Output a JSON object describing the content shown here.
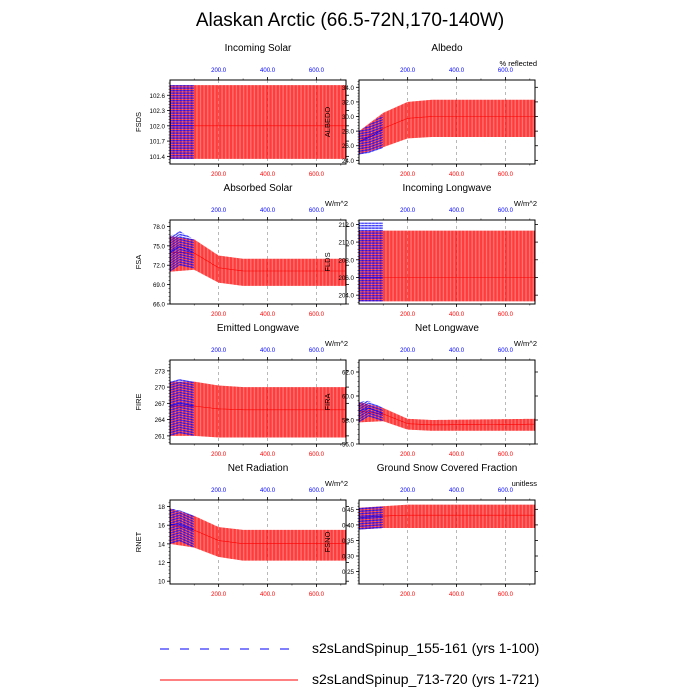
{
  "figure": {
    "title": "Alaskan Arctic (66.5-72N,170-140W)"
  },
  "legend": {
    "items": [
      {
        "label": "s2sLandSpinup_155-161 (yrs 1-100)",
        "color": "#0000ff",
        "style": "dashed"
      },
      {
        "label": "s2sLandSpinup_713-720 (yrs 1-721)",
        "color": "#ff0000",
        "style": "solid"
      }
    ]
  },
  "colors": {
    "series_a": "#0000ff",
    "series_b": "#ff0000"
  },
  "chart_data": [
    {
      "type": "line",
      "title": "Incoming Solar",
      "ylabel": "FSDS",
      "units": "",
      "ylim": [
        101.25,
        102.9
      ],
      "yticks": [
        101.4,
        101.7,
        102.0,
        102.3,
        102.6
      ],
      "ytick_labels": [
        "101.4",
        "101.7",
        "102.0",
        "102.3",
        "102.6"
      ],
      "top_axis": {
        "ticks": [
          200,
          400,
          600
        ],
        "labels": [
          "200.0",
          "400.0",
          "600.0"
        ],
        "range": [
          1,
          100
        ]
      },
      "bottom_axis": {
        "ticks": [
          200,
          400,
          600
        ],
        "labels": [
          "200.0",
          "400.0",
          "600.0"
        ],
        "range": [
          1,
          721
        ]
      },
      "series": [
        {
          "name": "s2sLandSpinup_155-161 (yrs 1-100)",
          "color": "#0000ff",
          "x_years": [
            1,
            100
          ],
          "annual_min": 101.35,
          "annual_max": 102.8,
          "mean": 102.0
        },
        {
          "name": "s2sLandSpinup_713-720 (yrs 1-721)",
          "color": "#ff0000",
          "x_years": [
            1,
            721
          ],
          "annual_min": 101.35,
          "annual_max": 102.8,
          "mean": 102.0
        }
      ]
    },
    {
      "type": "line",
      "title": "Albedo",
      "ylabel": "ALBEDO",
      "units": "% reflected",
      "ylim": [
        23.5,
        35.0
      ],
      "yticks": [
        24.0,
        26.0,
        28.0,
        30.0,
        32.0,
        34.0
      ],
      "ytick_labels": [
        "24.0",
        "26.0",
        "28.0",
        "30.0",
        "32.0",
        "34.0"
      ],
      "top_axis": {
        "ticks": [
          200,
          400,
          600
        ],
        "labels": [
          "200.0",
          "400.0",
          "600.0"
        ],
        "range": [
          1,
          100
        ]
      },
      "bottom_axis": {
        "ticks": [
          200,
          400,
          600
        ],
        "labels": [
          "200.0",
          "400.0",
          "600.0"
        ],
        "range": [
          1,
          721
        ]
      },
      "series": [
        {
          "name": "s2sLandSpinup_155-161 (yrs 1-100)",
          "color": "#0000ff",
          "points": [
            [
              1,
              24.8,
              28.0
            ],
            [
              40,
              25.0,
              28.8
            ],
            [
              100,
              25.7,
              30.3
            ]
          ]
        },
        {
          "name": "s2sLandSpinup_713-720 (yrs 1-721)",
          "color": "#ff0000",
          "points": [
            [
              1,
              24.8,
              28.0
            ],
            [
              100,
              25.8,
              30.5
            ],
            [
              200,
              27.0,
              32.0
            ],
            [
              300,
              27.2,
              32.3
            ],
            [
              721,
              27.2,
              32.3
            ]
          ]
        }
      ]
    },
    {
      "type": "line",
      "title": "Absorbed Solar",
      "ylabel": "FSA",
      "units": "W/m^2",
      "ylim": [
        66.0,
        79.0
      ],
      "yticks": [
        66.0,
        69.0,
        72.0,
        75.0,
        78.0
      ],
      "ytick_labels": [
        "66.0",
        "69.0",
        "72.0",
        "75.0",
        "78.0"
      ],
      "top_axis": {
        "ticks": [
          200,
          400,
          600
        ],
        "labels": [
          "200.0",
          "400.0",
          "600.0"
        ],
        "range": [
          1,
          100
        ]
      },
      "bottom_axis": {
        "ticks": [
          200,
          400,
          600
        ],
        "labels": [
          "200.0",
          "400.0",
          "600.0"
        ],
        "range": [
          1,
          721
        ]
      },
      "series": [
        {
          "name": "s2sLandSpinup_155-161 (yrs 1-100)",
          "color": "#0000ff",
          "points": [
            [
              1,
              71.0,
              76.5
            ],
            [
              40,
              72.0,
              77.3
            ],
            [
              100,
              71.5,
              76.0
            ]
          ]
        },
        {
          "name": "s2sLandSpinup_713-720 (yrs 1-721)",
          "color": "#ff0000",
          "points": [
            [
              1,
              71.0,
              76.5
            ],
            [
              100,
              71.3,
              76.0
            ],
            [
              200,
              69.3,
              73.5
            ],
            [
              300,
              68.8,
              73.0
            ],
            [
              721,
              68.8,
              73.0
            ]
          ]
        }
      ]
    },
    {
      "type": "line",
      "title": "Incoming Longwave",
      "ylabel": "FLDS",
      "units": "W/m^2",
      "ylim": [
        203.0,
        212.5
      ],
      "yticks": [
        204.0,
        206.0,
        208.0,
        210.0,
        212.0
      ],
      "ytick_labels": [
        "204.0",
        "206.0",
        "208.0",
        "210.0",
        "212.0"
      ],
      "top_axis": {
        "ticks": [
          200,
          400,
          600
        ],
        "labels": [
          "200.0",
          "400.0",
          "600.0"
        ],
        "range": [
          1,
          100
        ]
      },
      "bottom_axis": {
        "ticks": [
          200,
          400,
          600
        ],
        "labels": [
          "200.0",
          "400.0",
          "600.0"
        ],
        "range": [
          1,
          721
        ]
      },
      "series": [
        {
          "name": "s2sLandSpinup_155-161 (yrs 1-100)",
          "color": "#0000ff",
          "x_years": [
            1,
            100
          ],
          "annual_min": 203.3,
          "annual_max": 212.2,
          "mean": 206.0
        },
        {
          "name": "s2sLandSpinup_713-720 (yrs 1-721)",
          "color": "#ff0000",
          "x_years": [
            1,
            721
          ],
          "annual_min": 203.3,
          "annual_max": 211.3,
          "mean": 206.0
        }
      ]
    },
    {
      "type": "line",
      "title": "Emitted Longwave",
      "ylabel": "FIRE",
      "units": "W/m^2",
      "ylim": [
        259.5,
        275.0
      ],
      "yticks": [
        261,
        264,
        267,
        270,
        273
      ],
      "ytick_labels": [
        "261",
        "264",
        "267",
        "270",
        "273"
      ],
      "top_axis": {
        "ticks": [
          200,
          400,
          600
        ],
        "labels": [
          "200.0",
          "400.0",
          "600.0"
        ],
        "range": [
          1,
          100
        ]
      },
      "bottom_axis": {
        "ticks": [
          200,
          400,
          600
        ],
        "labels": [
          "200.0",
          "400.0",
          "600.0"
        ],
        "range": [
          1,
          721
        ]
      },
      "series": [
        {
          "name": "s2sLandSpinup_155-161 (yrs 1-100)",
          "color": "#0000ff",
          "points": [
            [
              1,
              261.0,
              271.0
            ],
            [
              40,
              261.5,
              271.5
            ],
            [
              100,
              261.0,
              271.0
            ]
          ]
        },
        {
          "name": "s2sLandSpinup_713-720 (yrs 1-721)",
          "color": "#ff0000",
          "points": [
            [
              1,
              261.0,
              271.0
            ],
            [
              100,
              261.0,
              271.0
            ],
            [
              200,
              260.7,
              270.3
            ],
            [
              300,
              260.7,
              270.0
            ],
            [
              721,
              260.7,
              270.0
            ]
          ]
        }
      ]
    },
    {
      "type": "line",
      "title": "Net Longwave",
      "ylabel": "FIRA",
      "units": "W/m^2",
      "ylim": [
        56.0,
        63.0
      ],
      "yticks": [
        56.0,
        58.0,
        60.0,
        62.0
      ],
      "ytick_labels": [
        "56.0",
        "58.0",
        "60.0",
        "62.0"
      ],
      "top_axis": {
        "ticks": [
          200,
          400,
          600
        ],
        "labels": [
          "200.0",
          "400.0",
          "600.0"
        ],
        "range": [
          1,
          100
        ]
      },
      "bottom_axis": {
        "ticks": [
          200,
          400,
          600
        ],
        "labels": [
          "200.0",
          "400.0",
          "600.0"
        ],
        "range": [
          1,
          721
        ]
      },
      "series": [
        {
          "name": "s2sLandSpinup_155-161 (yrs 1-100)",
          "color": "#0000ff",
          "points": [
            [
              1,
              57.8,
              59.5
            ],
            [
              40,
              58.3,
              59.6
            ],
            [
              100,
              57.9,
              59.0
            ]
          ]
        },
        {
          "name": "s2sLandSpinup_713-720 (yrs 1-721)",
          "color": "#ff0000",
          "points": [
            [
              1,
              57.8,
              59.5
            ],
            [
              100,
              57.9,
              59.0
            ],
            [
              200,
              57.2,
              58.1
            ],
            [
              300,
              57.1,
              58.0
            ],
            [
              721,
              57.1,
              58.1
            ]
          ]
        }
      ]
    },
    {
      "type": "line",
      "title": "Net Radiation",
      "ylabel": "RNET",
      "units": "W/m^2",
      "ylim": [
        9.7,
        18.7
      ],
      "yticks": [
        10,
        12,
        14,
        16,
        18
      ],
      "ytick_labels": [
        "10",
        "12",
        "14",
        "16",
        "18"
      ],
      "top_axis": {
        "ticks": [
          200,
          400,
          600
        ],
        "labels": [
          "200.0",
          "400.0",
          "600.0"
        ],
        "range": [
          1,
          100
        ]
      },
      "bottom_axis": {
        "ticks": [
          200,
          400,
          600
        ],
        "labels": [
          "200.0",
          "400.0",
          "600.0"
        ],
        "range": [
          1,
          721
        ]
      },
      "series": [
        {
          "name": "s2sLandSpinup_155-161 (yrs 1-100)",
          "color": "#0000ff",
          "points": [
            [
              1,
              14.0,
              17.8
            ],
            [
              40,
              14.3,
              17.6
            ],
            [
              100,
              13.6,
              17.0
            ]
          ]
        },
        {
          "name": "s2sLandSpinup_713-720 (yrs 1-721)",
          "color": "#ff0000",
          "points": [
            [
              1,
              14.0,
              17.8
            ],
            [
              100,
              13.6,
              17.0
            ],
            [
              200,
              12.6,
              15.8
            ],
            [
              300,
              12.2,
              15.5
            ],
            [
              721,
              12.2,
              15.5
            ]
          ]
        }
      ]
    },
    {
      "type": "line",
      "title": "Ground Snow Covered Fraction",
      "ylabel": "FSNO",
      "units": "unitless",
      "ylim": [
        0.21,
        0.48
      ],
      "yticks": [
        0.25,
        0.3,
        0.35,
        0.4,
        0.45
      ],
      "ytick_labels": [
        "0.25",
        "0.30",
        "0.35",
        "0.40",
        "0.45"
      ],
      "top_axis": {
        "ticks": [
          200,
          400,
          600
        ],
        "labels": [
          "200.0",
          "400.0",
          "600.0"
        ],
        "range": [
          1,
          100
        ]
      },
      "bottom_axis": {
        "ticks": [
          200,
          400,
          600
        ],
        "labels": [
          "200.0",
          "400.0",
          "600.0"
        ],
        "range": [
          1,
          721
        ]
      },
      "series": [
        {
          "name": "s2sLandSpinup_155-161 (yrs 1-100)",
          "color": "#0000ff",
          "points": [
            [
              1,
              0.385,
              0.455
            ],
            [
              100,
              0.39,
              0.46
            ]
          ]
        },
        {
          "name": "s2sLandSpinup_713-720 (yrs 1-721)",
          "color": "#ff0000",
          "points": [
            [
              1,
              0.385,
              0.455
            ],
            [
              100,
              0.39,
              0.46
            ],
            [
              200,
              0.39,
              0.465
            ],
            [
              721,
              0.39,
              0.465
            ]
          ]
        }
      ]
    }
  ]
}
